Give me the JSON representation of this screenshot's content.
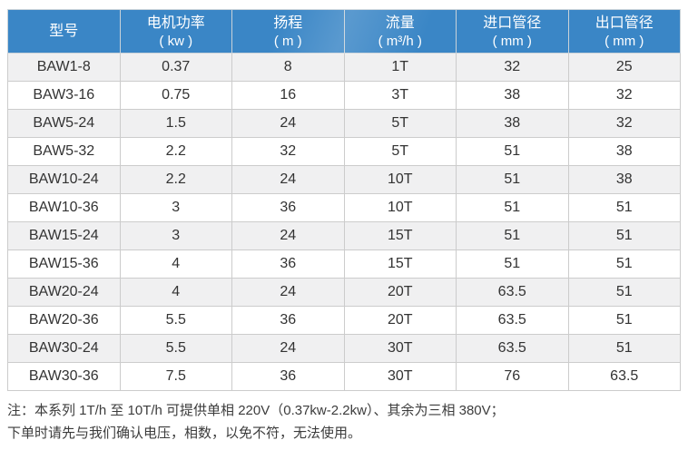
{
  "table": {
    "columns": [
      {
        "label": "型号",
        "unit": ""
      },
      {
        "label": "电机功率",
        "unit": "( kw )"
      },
      {
        "label": "扬程",
        "unit": "( m )"
      },
      {
        "label": "流量",
        "unit": "( m³/h )"
      },
      {
        "label": "进口管径",
        "unit": "( mm )"
      },
      {
        "label": "出口管径",
        "unit": "( mm )"
      }
    ],
    "rows": [
      [
        "BAW1-8",
        "0.37",
        "8",
        "1T",
        "32",
        "25"
      ],
      [
        "BAW3-16",
        "0.75",
        "16",
        "3T",
        "38",
        "32"
      ],
      [
        "BAW5-24",
        "1.5",
        "24",
        "5T",
        "38",
        "32"
      ],
      [
        "BAW5-32",
        "2.2",
        "32",
        "5T",
        "51",
        "38"
      ],
      [
        "BAW10-24",
        "2.2",
        "24",
        "10T",
        "51",
        "38"
      ],
      [
        "BAW10-36",
        "3",
        "36",
        "10T",
        "51",
        "51"
      ],
      [
        "BAW15-24",
        "3",
        "24",
        "15T",
        "51",
        "51"
      ],
      [
        "BAW15-36",
        "4",
        "36",
        "15T",
        "51",
        "51"
      ],
      [
        "BAW20-24",
        "4",
        "24",
        "20T",
        "63.5",
        "51"
      ],
      [
        "BAW20-36",
        "5.5",
        "36",
        "20T",
        "63.5",
        "51"
      ],
      [
        "BAW30-24",
        "5.5",
        "24",
        "30T",
        "63.5",
        "51"
      ],
      [
        "BAW30-36",
        "7.5",
        "36",
        "30T",
        "76",
        "63.5"
      ]
    ]
  },
  "notes": {
    "line1": "注：本系列 1T/h 至 10T/h 可提供单相 220V（0.37kw-2.2kw）、其余为三相 380V；",
    "line2": "下单时请先与我们确认电压，相数，以免不符，无法使用。"
  },
  "colors": {
    "header_bg": "#3a86c6",
    "header_text": "#ffffff",
    "row_alt": "#f0f0f1",
    "row_white": "#ffffff",
    "border": "#cccccc",
    "outer_border": "#c2c2c2",
    "cell_text": "#333333",
    "note_text": "#3c3c3c"
  }
}
